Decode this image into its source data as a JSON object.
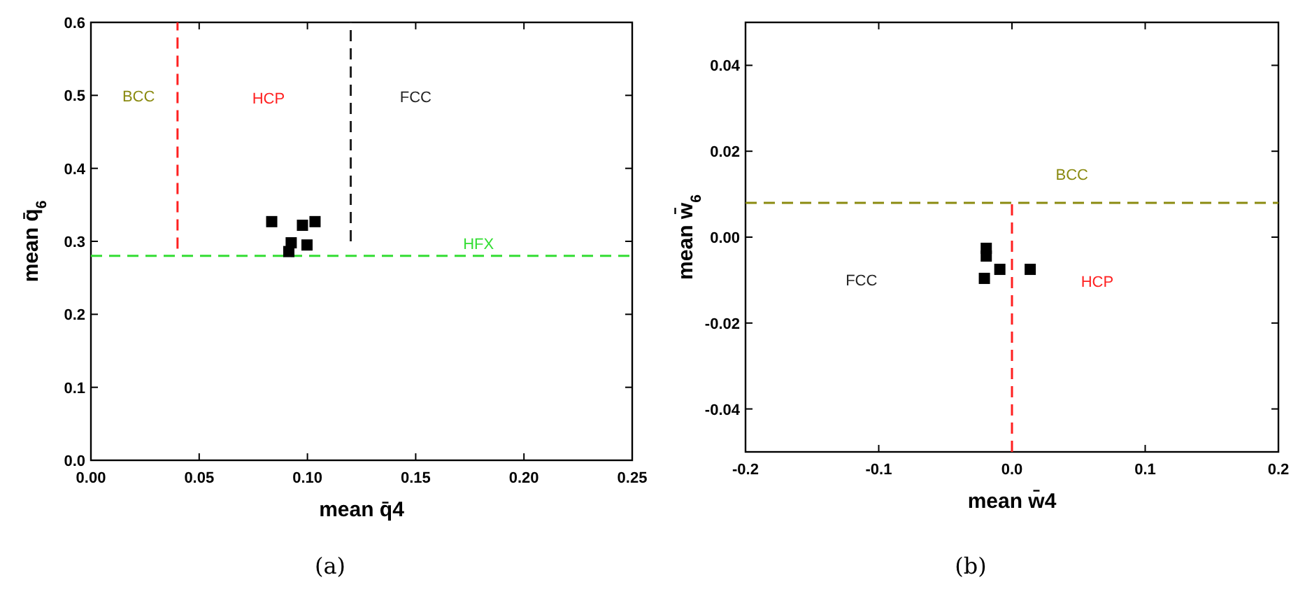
{
  "chart_data": [
    {
      "type": "scatter",
      "xlabel": "mean q̄4",
      "ylabel": "mean q̄$_{6}$",
      "xlim": [
        0,
        0.25
      ],
      "ylim": [
        0,
        0.6
      ],
      "xticks": [
        {
          "value": 0,
          "label": "0.00"
        },
        {
          "value": 0.05,
          "label": "0.05"
        },
        {
          "value": 0.1,
          "label": "0.10"
        },
        {
          "value": 0.15,
          "label": "0.15"
        },
        {
          "value": 0.2,
          "label": "0.20"
        },
        {
          "value": 0.25,
          "label": "0.25"
        }
      ],
      "yticks": [
        {
          "value": 0,
          "label": "0.0"
        },
        0.1,
        0.2,
        0.3,
        0.4,
        0.5,
        0.6
      ],
      "marker": "square",
      "grid": false,
      "series": [
        {
          "color": "#000000",
          "x": [
            0.0835,
            0.0977,
            0.1035,
            0.0925,
            0.0914,
            0.0998
          ],
          "values": [
            0.327,
            0.322,
            0.327,
            0.298,
            0.286,
            0.295
          ]
        },
        {
          "type": "line",
          "marker": "none",
          "color": "#ff2020",
          "line_style": "dashed",
          "x": [
            0.04,
            0.04
          ],
          "values": [
            0.29,
            0.6
          ]
        },
        {
          "type": "line",
          "marker": "none",
          "color": "#222222",
          "line_style": "dashed",
          "x": [
            0.12,
            0.12
          ],
          "values": [
            0.3,
            0.6
          ]
        }
      ],
      "ref_lines": [
        {
          "axis": "y",
          "value": 0.28,
          "color": "#33dd33",
          "line_style": "dashed"
        }
      ],
      "annotations": [
        "BCC",
        "HCP",
        "FCC",
        "HFX",
        "(a)"
      ]
    },
    {
      "type": "scatter",
      "xlabel": "mean w̄4",
      "ylabel": "mean w̄$_{6}$",
      "xlim": [
        -0.2,
        0.2
      ],
      "ylim": [
        -0.05,
        0.05
      ],
      "xticks": [
        -0.2,
        -0.1,
        {
          "value": 0,
          "label": "0.0"
        },
        0.1,
        0.2
      ],
      "yticks": [
        -0.04,
        -0.02,
        {
          "value": 0,
          "label": "0.00"
        },
        0.02,
        0.04
      ],
      "marker": "square",
      "grid": false,
      "series": [
        {
          "color": "#000000",
          "x": [
            -0.0193,
            -0.0193,
            -0.0091,
            0.0137,
            -0.0207
          ],
          "values": [
            -0.0026,
            -0.0044,
            -0.0075,
            -0.0075,
            -0.0096
          ]
        },
        {
          "type": "line",
          "marker": "none",
          "color": "#ff2020",
          "line_style": "dashed",
          "x": [
            0,
            0
          ],
          "values": [
            -0.05,
            0.008
          ]
        }
      ],
      "ref_lines": [
        {
          "axis": "y",
          "value": 0.008,
          "color": "#8a8a10",
          "line_style": "dashed"
        }
      ],
      "annotations": [
        "BCC",
        "FCC",
        "HCP",
        "(b)"
      ]
    }
  ]
}
